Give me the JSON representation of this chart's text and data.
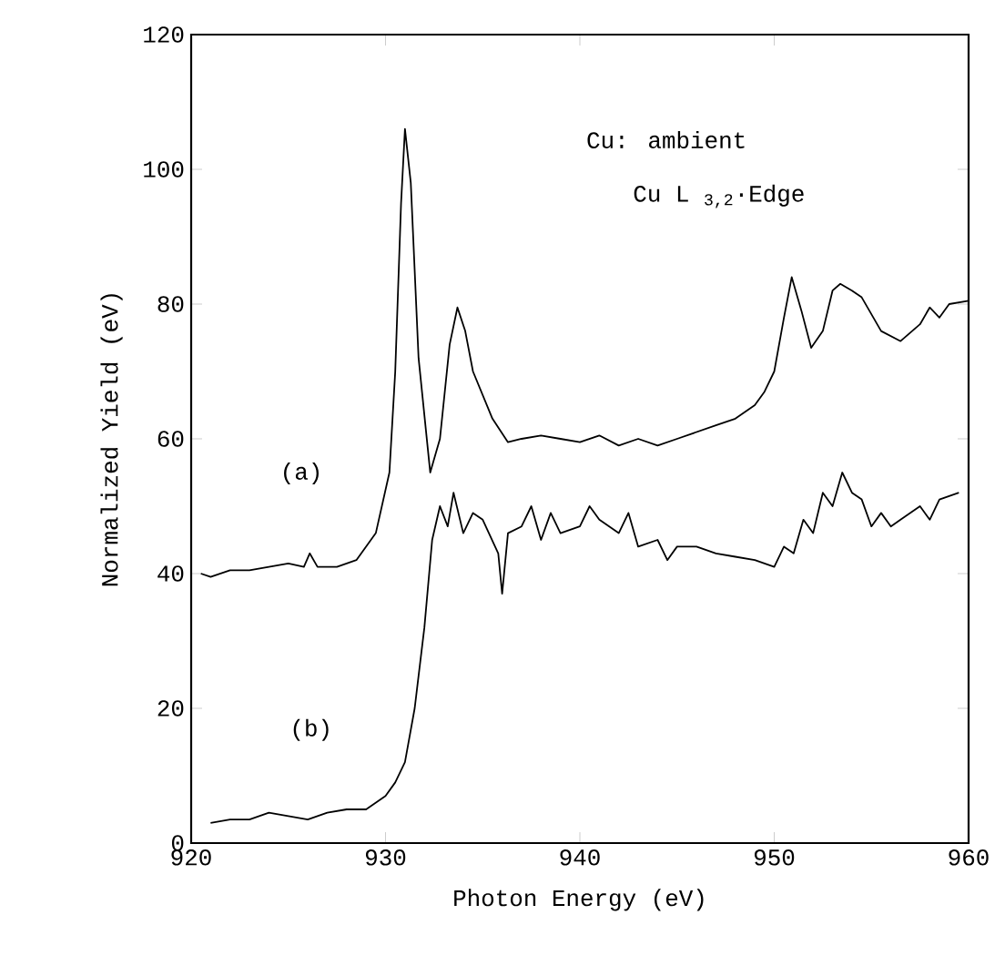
{
  "chart_data": {
    "type": "line",
    "xlabel": "Photon Energy (eV)",
    "ylabel": "Normalized Yield (eV)",
    "xlim": [
      920,
      960
    ],
    "ylim": [
      0,
      120
    ],
    "xticks": [
      920,
      930,
      940,
      950,
      960
    ],
    "yticks": [
      0,
      20,
      40,
      60,
      80,
      100,
      120
    ],
    "grid": false,
    "legend": false,
    "marker": "none",
    "line_style": "solid",
    "annotations": [
      "Cu: ambient",
      "Cu L $_{3,2}$·Edge"
    ],
    "series": [
      {
        "name": "(a)",
        "color": "#000000",
        "x": [
          920.5,
          921,
          922,
          923,
          924,
          925,
          925.8,
          926.1,
          926.5,
          927.5,
          928.5,
          929.5,
          930.2,
          930.5,
          930.8,
          931,
          931.3,
          931.7,
          932.3,
          932.8,
          933.3,
          933.7,
          934.1,
          934.5,
          935.5,
          936.3,
          937,
          938,
          939,
          940,
          941,
          942,
          943,
          944,
          945,
          946,
          947,
          948,
          949,
          949.5,
          950,
          950.5,
          950.9,
          951.4,
          951.9,
          952.5,
          953,
          953.4,
          954,
          954.5,
          955.5,
          956.5,
          957.5,
          958,
          958.5,
          959,
          960
        ],
        "values": [
          40,
          39.5,
          40.5,
          40.5,
          41,
          41.5,
          41,
          43,
          41,
          41,
          42,
          46,
          55,
          70,
          95,
          106,
          98,
          72,
          55,
          60,
          74,
          79.5,
          76,
          70,
          63,
          59.5,
          60,
          60.5,
          60,
          59.5,
          60.5,
          59,
          60,
          59,
          60,
          61,
          62,
          63,
          65,
          67,
          70,
          78,
          84,
          79,
          73.5,
          76,
          82,
          83,
          82,
          81,
          76,
          74.5,
          77,
          79.5,
          78,
          80,
          80.5
        ]
      },
      {
        "name": "(b)",
        "color": "#000000",
        "x": [
          921,
          922,
          923,
          924,
          925,
          926,
          927,
          928,
          929,
          930,
          930.5,
          931,
          931.5,
          932,
          932.4,
          932.8,
          933.2,
          933.5,
          934,
          934.5,
          935,
          935.8,
          936,
          936.3,
          937,
          937.5,
          938,
          938.5,
          939,
          940,
          940.5,
          941,
          942,
          942.5,
          943,
          944,
          944.5,
          945,
          946,
          947,
          948,
          949,
          950,
          950.5,
          951,
          951.5,
          952,
          952.5,
          953,
          953.5,
          954,
          954.5,
          955,
          955.5,
          956,
          956.5,
          957.5,
          958,
          958.5,
          959.5
        ],
        "values": [
          3,
          3.5,
          3.5,
          4.5,
          4,
          3.5,
          4.5,
          5,
          5,
          7,
          9,
          12,
          20,
          32,
          45,
          50,
          47,
          52,
          46,
          49,
          48,
          43,
          37,
          46,
          47,
          50,
          45,
          49,
          46,
          47,
          50,
          48,
          46,
          49,
          44,
          45,
          42,
          44,
          44,
          43,
          42.5,
          42,
          41,
          44,
          43,
          48,
          46,
          52,
          50,
          55,
          52,
          51,
          47,
          49,
          47,
          48,
          50,
          48,
          51,
          52
        ]
      }
    ]
  }
}
